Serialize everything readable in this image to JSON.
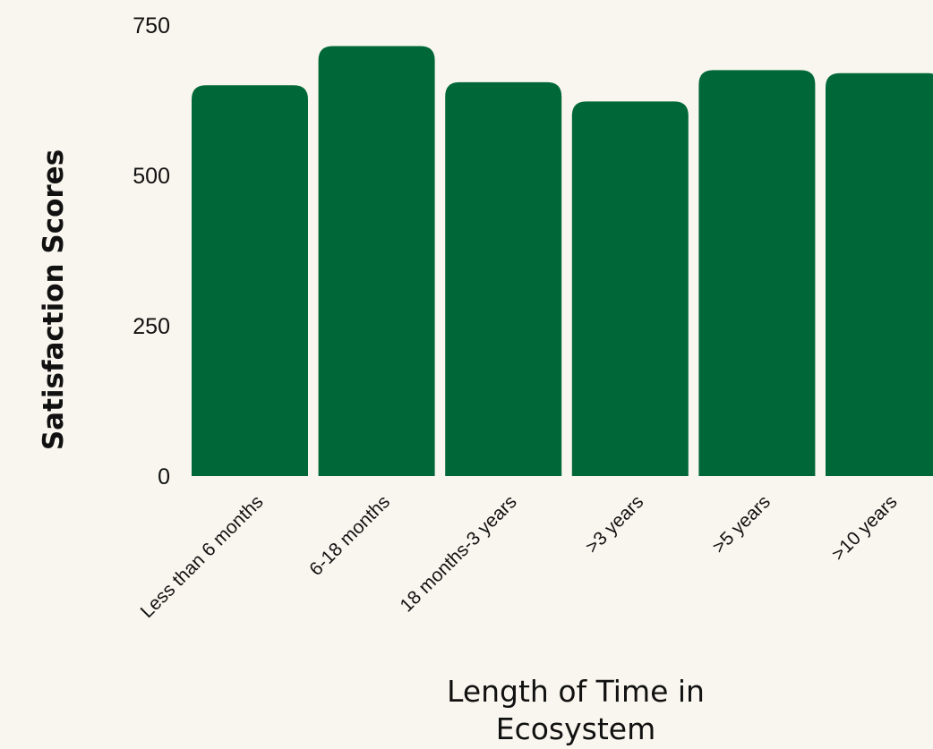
{
  "chart_data": {
    "type": "bar",
    "categories": [
      "Less than 6 months",
      "6-18 months",
      "18 months-3 years",
      ">3 years",
      ">5 years",
      ">10 years"
    ],
    "values": [
      650,
      715,
      655,
      623,
      675,
      670
    ],
    "title": "",
    "xlabel": "Length of Time in Ecosystem",
    "ylabel": "Satisfaction Scores",
    "ylim": [
      0,
      750
    ],
    "yticks": [
      "0",
      "250",
      "500",
      "750"
    ],
    "grid": false,
    "legend": "none",
    "bar_color": "#006838"
  }
}
